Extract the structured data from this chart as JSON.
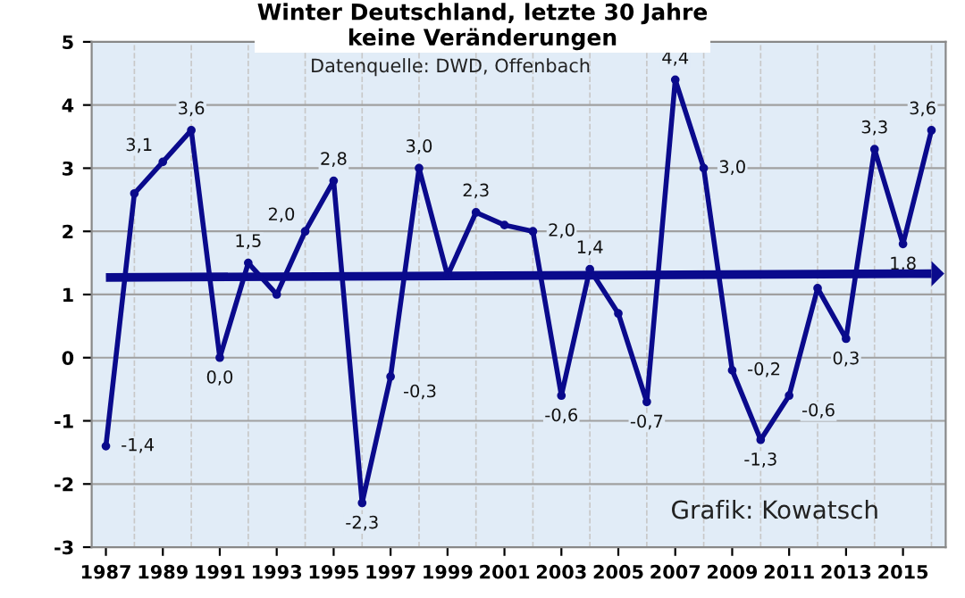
{
  "chart_data": {
    "type": "line",
    "title": "Winter Deutschland, letzte 30 Jahre\nkeine Veränderungen",
    "x": [
      1987,
      1988,
      1989,
      1990,
      1991,
      1992,
      1993,
      1994,
      1995,
      1996,
      1997,
      1998,
      1999,
      2000,
      2001,
      2002,
      2003,
      2004,
      2005,
      2006,
      2007,
      2008,
      2009,
      2010,
      2011,
      2012,
      2013,
      2014,
      2015,
      2016
    ],
    "series": [
      {
        "color": "#0a0a8c",
        "values": [
          -1.4,
          2.6,
          3.1,
          3.6,
          0.0,
          1.5,
          1.0,
          2.0,
          2.8,
          -2.3,
          -0.3,
          3.0,
          1.3,
          2.3,
          2.1,
          2.0,
          -0.6,
          1.4,
          0.7,
          -0.7,
          4.4,
          3.0,
          -0.2,
          -1.3,
          -0.6,
          1.1,
          0.3,
          3.3,
          1.8,
          3.6
        ],
        "value_labels": [
          "-1,4",
          null,
          "3,1",
          "3,6",
          "0,0",
          "1,5",
          null,
          "2,0",
          "2,8",
          "-2,3",
          "-0,3",
          "3,0",
          null,
          "2,3",
          null,
          "2,0",
          "-0,6",
          "1,4",
          null,
          "-0,7",
          "4,4",
          "3,0",
          "-0,2",
          "-1,3",
          "-0,6",
          null,
          "0,3",
          "3,3",
          "1,8",
          "3,6"
        ]
      },
      {
        "type": "line",
        "color": "#0a0a8c",
        "x": [
          1987,
          2016
        ],
        "values": [
          1.27,
          1.33
        ],
        "marker": "none"
      }
    ],
    "annotations": [
      "Datenquelle: DWD, Offenbach",
      "Grafik: Kowatsch"
    ],
    "xlim": [
      1986.5,
      2016.5
    ],
    "xticks": [
      1987,
      1989,
      1991,
      1993,
      1995,
      1997,
      1999,
      2001,
      2003,
      2005,
      2007,
      2009,
      2011,
      2013,
      2015
    ],
    "ylim": [
      -3,
      5
    ],
    "yticks": [
      -3,
      -2,
      -1,
      0,
      1,
      2,
      3,
      4,
      5
    ],
    "grid": true,
    "marker": "circle",
    "line_style": "solid"
  }
}
